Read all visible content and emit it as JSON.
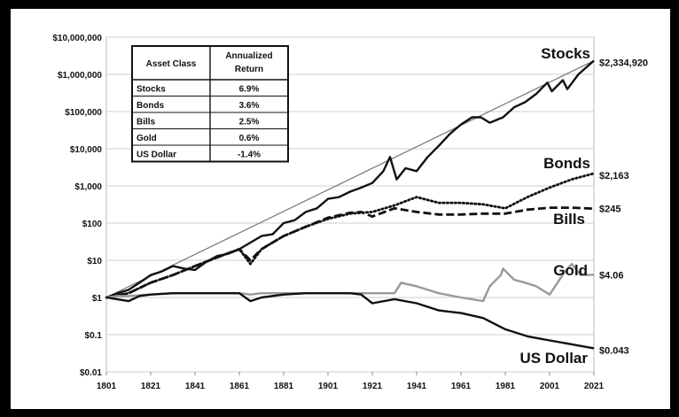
{
  "chart_data": {
    "type": "line",
    "y_scale": "log",
    "ylim": [
      0.01,
      10000000
    ],
    "xlim": [
      1801,
      2021
    ],
    "grid": {
      "horizontal": true,
      "vertical": false
    },
    "x_ticks": [
      "1801",
      "1821",
      "1841",
      "1861",
      "1881",
      "1901",
      "1921",
      "1941",
      "1961",
      "1981",
      "2001",
      "2021"
    ],
    "y_ticks": [
      {
        "value": 10000000,
        "label": "$10,000,000"
      },
      {
        "value": 1000000,
        "label": "$1,000,000"
      },
      {
        "value": 100000,
        "label": "$100,000"
      },
      {
        "value": 10000,
        "label": "$10,000"
      },
      {
        "value": 1000,
        "label": "$1,000"
      },
      {
        "value": 100,
        "label": "$100"
      },
      {
        "value": 10,
        "label": "$10"
      },
      {
        "value": 1,
        "label": "$1"
      },
      {
        "value": 0.1,
        "label": "$0.1"
      },
      {
        "value": 0.01,
        "label": "$0.01"
      }
    ],
    "series": [
      {
        "name": "Stocks",
        "end_label": "$2,334,920",
        "color": "#111111",
        "style": "solid",
        "x": [
          1801,
          1806,
          1811,
          1816,
          1821,
          1826,
          1831,
          1836,
          1841,
          1846,
          1851,
          1856,
          1861,
          1866,
          1871,
          1876,
          1881,
          1886,
          1891,
          1896,
          1901,
          1906,
          1911,
          1916,
          1921,
          1926,
          1929,
          1932,
          1936,
          1941,
          1946,
          1951,
          1956,
          1961,
          1966,
          1970,
          1974,
          1980,
          1985,
          1990,
          1995,
          2000,
          2002,
          2007,
          2009,
          2014,
          2021
        ],
        "y": [
          1,
          1.3,
          1.6,
          2.5,
          4,
          5,
          7,
          6,
          5.5,
          9,
          13,
          15,
          20,
          30,
          45,
          50,
          100,
          120,
          200,
          250,
          450,
          500,
          700,
          900,
          1200,
          2500,
          6000,
          1500,
          3000,
          2500,
          6000,
          12000,
          25000,
          45000,
          70000,
          70000,
          50000,
          70000,
          130000,
          180000,
          300000,
          600000,
          350000,
          700000,
          400000,
          1000000,
          2334920
        ]
      },
      {
        "name": "Bonds",
        "end_label": "$2,163",
        "color": "#111111",
        "style": "dotted",
        "x": [
          1801,
          1811,
          1821,
          1831,
          1841,
          1851,
          1861,
          1866,
          1871,
          1881,
          1891,
          1901,
          1911,
          1921,
          1931,
          1941,
          1951,
          1961,
          1971,
          1981,
          1991,
          2001,
          2011,
          2021
        ],
        "y": [
          1,
          1.3,
          2.5,
          4,
          7,
          12,
          20,
          8,
          20,
          45,
          80,
          130,
          180,
          200,
          300,
          500,
          350,
          350,
          320,
          250,
          500,
          900,
          1500,
          2163
        ]
      },
      {
        "name": "Bills",
        "end_label": "$245",
        "color": "#111111",
        "style": "dashed",
        "x": [
          1801,
          1811,
          1821,
          1831,
          1841,
          1851,
          1861,
          1866,
          1871,
          1881,
          1891,
          1901,
          1911,
          1916,
          1921,
          1931,
          1941,
          1951,
          1961,
          1971,
          1981,
          1991,
          2001,
          2011,
          2021
        ],
        "y": [
          1,
          1.3,
          2.5,
          4,
          7,
          12,
          20,
          10,
          20,
          45,
          80,
          140,
          190,
          200,
          150,
          250,
          200,
          170,
          170,
          180,
          180,
          230,
          260,
          260,
          245
        ]
      },
      {
        "name": "Gold",
        "end_label": "$4.06",
        "color": "#999999",
        "style": "solid",
        "x": [
          1801,
          1806,
          1811,
          1821,
          1831,
          1851,
          1861,
          1866,
          1871,
          1881,
          1891,
          1901,
          1911,
          1916,
          1921,
          1931,
          1934,
          1941,
          1951,
          1961,
          1971,
          1974,
          1979,
          1980,
          1985,
          1990,
          1995,
          2001,
          2008,
          2011,
          2015,
          2021
        ],
        "y": [
          1,
          1.1,
          1.1,
          1.2,
          1.3,
          1.3,
          1.3,
          1.2,
          1.3,
          1.3,
          1.3,
          1.3,
          1.3,
          1.3,
          1.3,
          1.3,
          2.5,
          2,
          1.3,
          1,
          0.8,
          2,
          4,
          6,
          3,
          2.5,
          2,
          1.2,
          5,
          8,
          4,
          4.06
        ]
      },
      {
        "name": "US Dollar",
        "end_label": "$0.043",
        "color": "#111111",
        "style": "solid",
        "x": [
          1801,
          1811,
          1816,
          1821,
          1831,
          1841,
          1851,
          1861,
          1866,
          1871,
          1881,
          1891,
          1901,
          1911,
          1916,
          1921,
          1931,
          1941,
          1951,
          1961,
          1971,
          1981,
          1991,
          2001,
          2011,
          2021
        ],
        "y": [
          1,
          0.8,
          1.1,
          1.2,
          1.3,
          1.3,
          1.3,
          1.3,
          0.8,
          1,
          1.2,
          1.3,
          1.3,
          1.3,
          1.2,
          0.7,
          0.9,
          0.7,
          0.45,
          0.38,
          0.28,
          0.14,
          0.09,
          0.07,
          0.055,
          0.043
        ]
      }
    ],
    "trend_line": {
      "color": "#777777",
      "from": [
        1801,
        1
      ],
      "to": [
        2021,
        2334920
      ]
    },
    "table": {
      "headers": [
        "Asset Class",
        "Annualized Return"
      ],
      "rows": [
        [
          "Stocks",
          "6.9%"
        ],
        [
          "Bonds",
          "3.6%"
        ],
        [
          "Bills",
          "2.5%"
        ],
        [
          "Gold",
          "0.6%"
        ],
        [
          "US Dollar",
          "-1.4%"
        ]
      ]
    }
  }
}
